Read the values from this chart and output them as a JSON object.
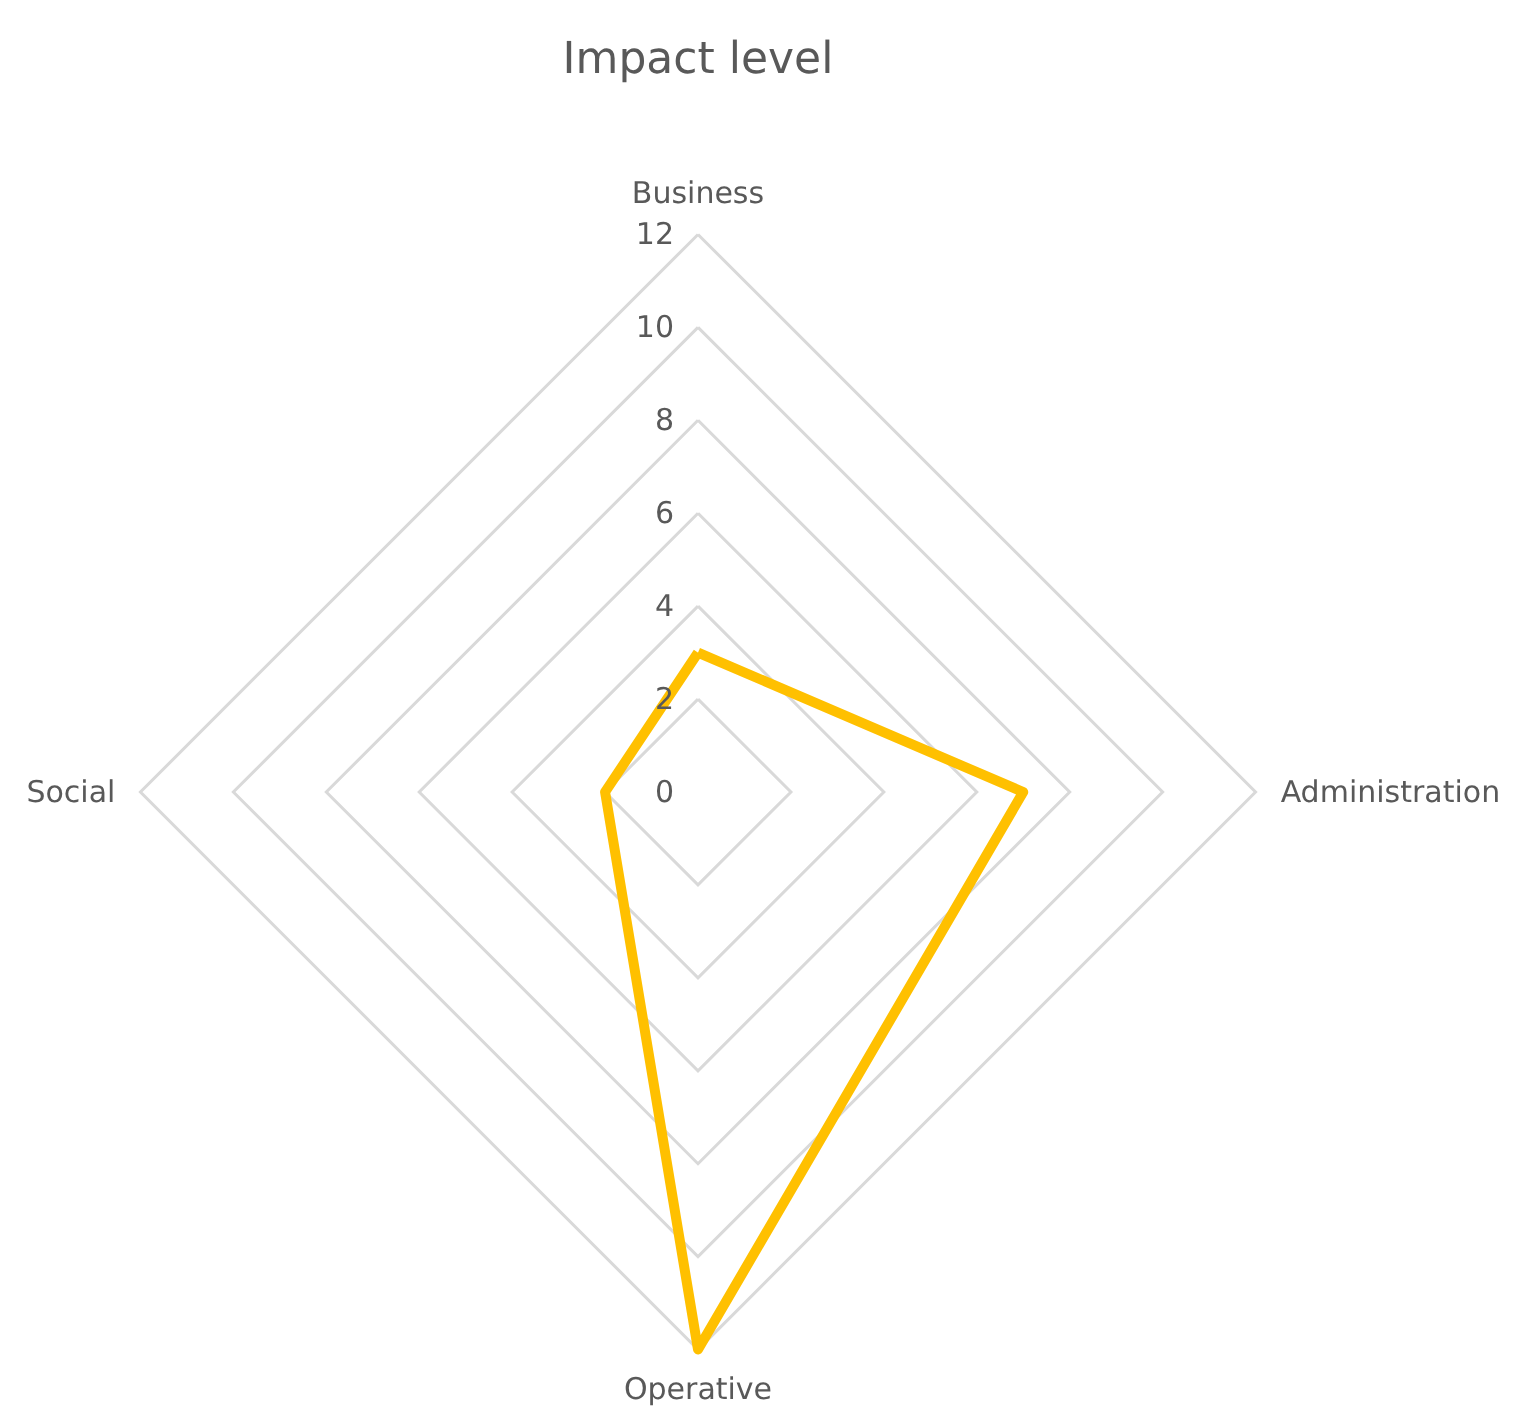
{
  "chart_data": {
    "type": "radar",
    "title": "Impact level",
    "categories": [
      "Business",
      "Administration",
      "Operative",
      "Social"
    ],
    "series": [
      {
        "color": "#ffc000",
        "values": [
          3,
          7,
          12,
          2
        ]
      }
    ],
    "ylim": [
      0,
      12
    ],
    "yticks": [
      0,
      2,
      4,
      6,
      8,
      10,
      12
    ],
    "grid": true,
    "line_style": "solid"
  }
}
